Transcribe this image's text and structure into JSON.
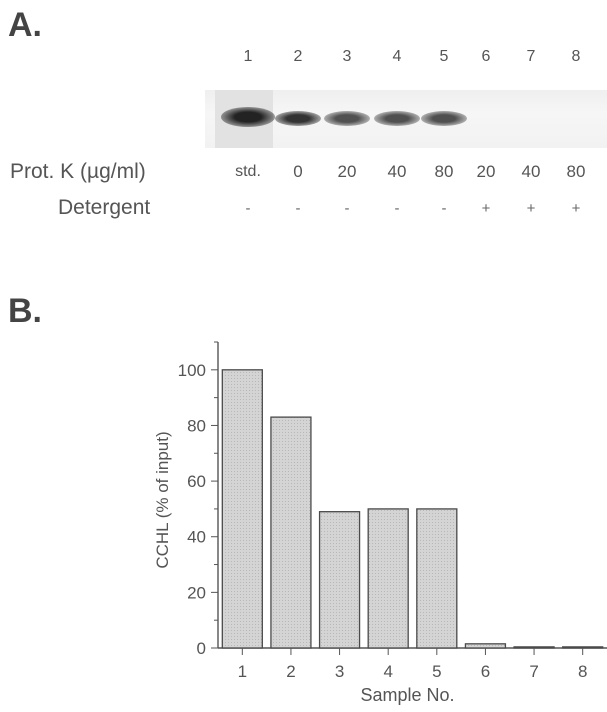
{
  "panels": {
    "a": "A.",
    "b": "B."
  },
  "gel": {
    "lanes": [
      "1",
      "2",
      "3",
      "4",
      "5",
      "6",
      "7",
      "8"
    ],
    "band_intensity": [
      1.0,
      0.83,
      0.49,
      0.5,
      0.5,
      0.0,
      0.0,
      0.0
    ],
    "row1_label": "Prot. K (µg/ml)",
    "row1_values": [
      "std.",
      "0",
      "20",
      "40",
      "80",
      "20",
      "40",
      "80"
    ],
    "row2_label": "Detergent",
    "row2_values": [
      "-",
      "-",
      "-",
      "-",
      "-",
      "+",
      "+",
      "+"
    ]
  },
  "chart_data": {
    "type": "bar",
    "categories": [
      "1",
      "2",
      "3",
      "4",
      "5",
      "6",
      "7",
      "8"
    ],
    "values": [
      100,
      83,
      49,
      50,
      50,
      1.5,
      0.4,
      0.4
    ],
    "xlabel": "Sample No.",
    "ylabel": "CCHL   (% of input)",
    "ylim": [
      0,
      110
    ],
    "yticks": [
      0,
      20,
      40,
      60,
      80,
      100
    ],
    "bar_color": "#d4d4d4"
  }
}
